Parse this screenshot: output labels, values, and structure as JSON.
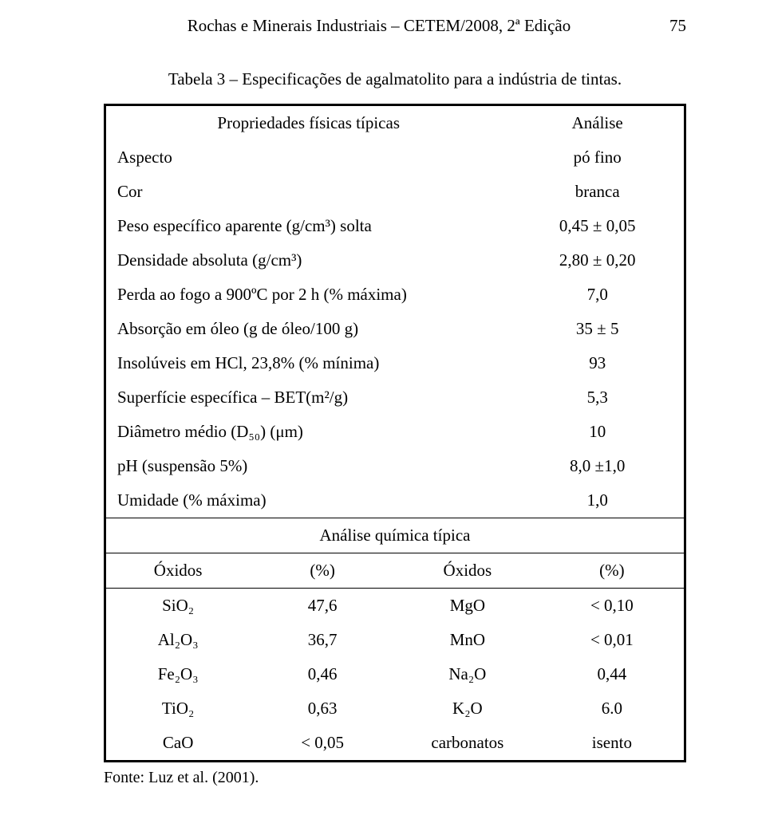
{
  "header": {
    "title": "Rochas e Minerais Industriais – CETEM/2008, 2ª Edição",
    "page_number": "75"
  },
  "caption": "Tabela 3 – Especificações de agalmatolito para a indústria de tintas.",
  "section1": {
    "heading_left": "Propriedades físicas típicas",
    "heading_right": "Análise",
    "rows": [
      {
        "label": "Aspecto",
        "value": "pó fino"
      },
      {
        "label": "Cor",
        "value": "branca"
      },
      {
        "label": "Peso específico aparente (g/cm³) solta",
        "value": "0,45 ± 0,05"
      },
      {
        "label": "Densidade absoluta (g/cm³)",
        "value": "2,80 ± 0,20"
      },
      {
        "label": "Perda ao fogo a 900ºC por 2 h (% máxima)",
        "value": "7,0"
      },
      {
        "label": "Absorção em óleo (g de óleo/100 g)",
        "value": "35 ± 5"
      },
      {
        "label": "Insolúveis em HCl, 23,8% (% mínima)",
        "value": "93"
      },
      {
        "label": "Superfície específica – BET(m²/g)",
        "value": "5,3"
      },
      {
        "label": "Diâmetro médio (D₅₀) (μm)",
        "value": "10"
      },
      {
        "label": "pH  (suspensão 5%)",
        "value": "8,0 ±1,0"
      },
      {
        "label": "Umidade (% máxima)",
        "value": "1,0"
      }
    ]
  },
  "section2": {
    "heading": "Análise química típica",
    "col_headers": [
      "Óxidos",
      "(%)",
      "Óxidos",
      "(%)"
    ],
    "rows": [
      [
        "SiO₂",
        "47,6",
        "MgO",
        "< 0,10"
      ],
      [
        "Al₂O₃",
        "36,7",
        "MnO",
        "< 0,01"
      ],
      [
        "Fe₂O₃",
        "0,46",
        "Na₂O",
        "0,44"
      ],
      [
        "TiO₂",
        "0,63",
        "K₂O",
        "6.0"
      ],
      [
        "CaO",
        "< 0,05",
        "carbonatos",
        "isento"
      ]
    ]
  },
  "source": "Fonte: Luz et al. (2001)."
}
